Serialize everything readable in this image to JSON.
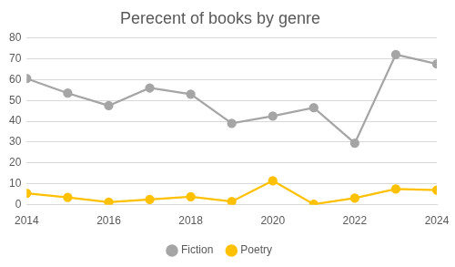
{
  "chart_data": {
    "type": "line",
    "title": "Perecent of books by genre",
    "x": [
      2014,
      2015,
      2016,
      2017,
      2018,
      2019,
      2020,
      2021,
      2022,
      2023,
      2024
    ],
    "series": [
      {
        "name": "Fiction",
        "color": "#a5a5a5",
        "marker": "circle",
        "values": [
          60.5,
          53.5,
          47.5,
          56,
          53,
          39,
          42.5,
          46.5,
          29.5,
          72,
          67.5
        ]
      },
      {
        "name": "Poetry",
        "color": "#ffc000",
        "marker": "circle",
        "values": [
          5.5,
          3.5,
          1.2,
          2.5,
          3.8,
          1.5,
          11.5,
          0.2,
          3.2,
          7.5,
          7
        ]
      }
    ],
    "xlim": [
      2014,
      2024
    ],
    "xticks": [
      2014,
      2016,
      2018,
      2020,
      2022,
      2024
    ],
    "ylim": [
      0,
      80
    ],
    "yticks": [
      0,
      10,
      20,
      30,
      40,
      50,
      60,
      70,
      80
    ],
    "grid": true,
    "legend": "bottom"
  }
}
